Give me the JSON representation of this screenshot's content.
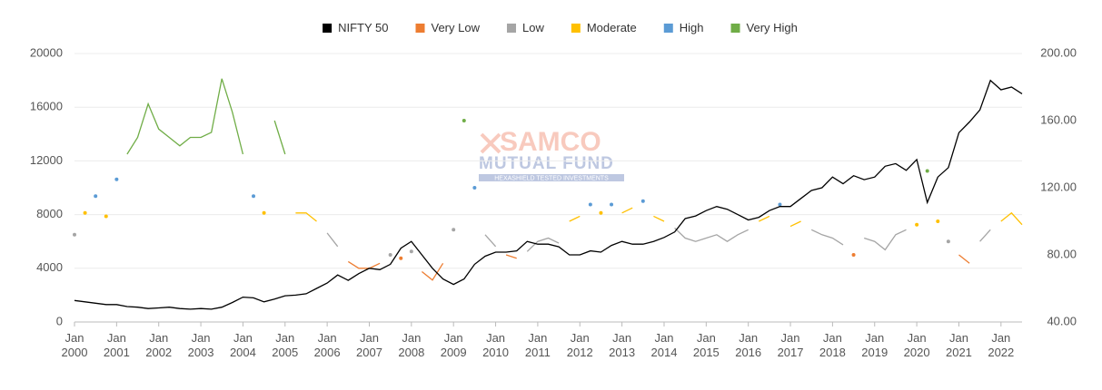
{
  "chart_data": {
    "type": "line",
    "x": [
      "2000-01",
      "2000-04",
      "2000-07",
      "2000-10",
      "2001-01",
      "2001-04",
      "2001-07",
      "2001-10",
      "2002-01",
      "2002-04",
      "2002-07",
      "2002-10",
      "2003-01",
      "2003-04",
      "2003-07",
      "2003-10",
      "2004-01",
      "2004-04",
      "2004-07",
      "2004-10",
      "2005-01",
      "2005-04",
      "2005-07",
      "2005-10",
      "2006-01",
      "2006-04",
      "2006-07",
      "2006-10",
      "2007-01",
      "2007-04",
      "2007-07",
      "2007-10",
      "2008-01",
      "2008-04",
      "2008-07",
      "2008-10",
      "2009-01",
      "2009-04",
      "2009-07",
      "2009-10",
      "2010-01",
      "2010-04",
      "2010-07",
      "2010-10",
      "2011-01",
      "2011-04",
      "2011-07",
      "2011-10",
      "2012-01",
      "2012-04",
      "2012-07",
      "2012-10",
      "2013-01",
      "2013-04",
      "2013-07",
      "2013-10",
      "2014-01",
      "2014-04",
      "2014-07",
      "2014-10",
      "2015-01",
      "2015-04",
      "2015-07",
      "2015-10",
      "2016-01",
      "2016-04",
      "2016-07",
      "2016-10",
      "2017-01",
      "2017-04",
      "2017-07",
      "2017-10",
      "2018-01",
      "2018-04",
      "2018-07",
      "2018-10",
      "2019-01",
      "2019-04",
      "2019-07",
      "2019-10",
      "2020-01",
      "2020-04",
      "2020-07",
      "2020-10",
      "2021-01",
      "2021-04",
      "2021-07",
      "2021-10",
      "2022-01",
      "2022-04",
      "2022-07"
    ],
    "xlim": [
      "2000-01",
      "2022-07"
    ],
    "xticks": [
      {
        "value": "2000-01",
        "label": "Jan 2000"
      },
      {
        "value": "2001-01",
        "label": "Jan 2001"
      },
      {
        "value": "2002-01",
        "label": "Jan 2002"
      },
      {
        "value": "2003-01",
        "label": "Jan 2003"
      },
      {
        "value": "2004-01",
        "label": "Jan 2004"
      },
      {
        "value": "2005-01",
        "label": "Jan 2005"
      },
      {
        "value": "2006-01",
        "label": "Jan 2006"
      },
      {
        "value": "2007-01",
        "label": "Jan 2007"
      },
      {
        "value": "2008-01",
        "label": "Jan 2008"
      },
      {
        "value": "2009-01",
        "label": "Jan 2009"
      },
      {
        "value": "2010-01",
        "label": "Jan 2010"
      },
      {
        "value": "2011-01",
        "label": "Jan 2011"
      },
      {
        "value": "2012-01",
        "label": "Jan 2012"
      },
      {
        "value": "2013-01",
        "label": "Jan 2013"
      },
      {
        "value": "2014-01",
        "label": "Jan 2014"
      },
      {
        "value": "2015-01",
        "label": "Jan 2015"
      },
      {
        "value": "2016-01",
        "label": "Jan 2016"
      },
      {
        "value": "2017-01",
        "label": "Jan 2017"
      },
      {
        "value": "2018-01",
        "label": "Jan 2018"
      },
      {
        "value": "2019-01",
        "label": "Jan 2019"
      },
      {
        "value": "2020-01",
        "label": "Jan 2020"
      },
      {
        "value": "2021-01",
        "label": "Jan 2021"
      },
      {
        "value": "2022-01",
        "label": "Jan 2022"
      }
    ],
    "ylim": [
      0,
      20000
    ],
    "yticks": [
      0,
      4000,
      8000,
      12000,
      16000,
      20000
    ],
    "y2lim": [
      40,
      200
    ],
    "y2ticks": [
      {
        "value": 40,
        "label": "40.00"
      },
      {
        "value": 80,
        "label": "80.00"
      },
      {
        "value": 120,
        "label": "120.00"
      },
      {
        "value": 160,
        "label": "160.00"
      },
      {
        "value": 200,
        "label": "200.00"
      }
    ],
    "grid": true,
    "series": [
      {
        "name": "NIFTY 50",
        "color": "#000000",
        "values": [
          1600,
          1500,
          1400,
          1300,
          1300,
          1150,
          1100,
          1000,
          1050,
          1100,
          1000,
          950,
          1000,
          950,
          1100,
          1450,
          1850,
          1800,
          1500,
          1700,
          1950,
          2000,
          2100,
          2500,
          2900,
          3500,
          3100,
          3600,
          4000,
          3900,
          4300,
          5500,
          6000,
          5000,
          4000,
          3200,
          2800,
          3200,
          4300,
          4900,
          5200,
          5200,
          5300,
          6000,
          5800,
          5800,
          5600,
          5000,
          5000,
          5300,
          5200,
          5700,
          6000,
          5800,
          5800,
          6000,
          6300,
          6700,
          7700,
          7900,
          8300,
          8600,
          8400,
          8000,
          7600,
          7800,
          8300,
          8600,
          8600,
          9200,
          9800,
          10000,
          10800,
          10300,
          10900,
          10600,
          10800,
          11600,
          11800,
          11300,
          12100,
          8900,
          10800,
          11500,
          14100,
          14900,
          15800,
          18000,
          17300,
          17500,
          17000
        ]
      },
      {
        "name": "Very Low",
        "color": "#ed7d31",
        "axis": "y2",
        "values": [
          null,
          null,
          null,
          null,
          null,
          null,
          null,
          null,
          null,
          null,
          null,
          null,
          null,
          null,
          null,
          null,
          null,
          null,
          null,
          null,
          null,
          null,
          null,
          null,
          null,
          null,
          76,
          72,
          72,
          75,
          null,
          78,
          null,
          70,
          65,
          75,
          null,
          null,
          null,
          null,
          null,
          80,
          78,
          null,
          null,
          null,
          null,
          null,
          null,
          null,
          null,
          null,
          null,
          null,
          null,
          null,
          null,
          null,
          null,
          null,
          null,
          null,
          null,
          null,
          null,
          null,
          null,
          null,
          null,
          null,
          null,
          null,
          null,
          null,
          80,
          null,
          null,
          null,
          null,
          null,
          null,
          null,
          null,
          null,
          80,
          75,
          null,
          null,
          null,
          null,
          null
        ]
      },
      {
        "name": "Low",
        "color": "#a5a5a5",
        "axis": "y2",
        "values": [
          92,
          null,
          null,
          null,
          null,
          null,
          null,
          null,
          null,
          null,
          null,
          null,
          null,
          null,
          null,
          null,
          null,
          null,
          null,
          null,
          null,
          null,
          null,
          null,
          93,
          85,
          null,
          null,
          null,
          null,
          80,
          null,
          82,
          null,
          null,
          null,
          95,
          null,
          null,
          92,
          85,
          null,
          null,
          82,
          88,
          90,
          87,
          null,
          null,
          null,
          null,
          null,
          null,
          null,
          null,
          null,
          null,
          96,
          90,
          88,
          90,
          92,
          88,
          92,
          95,
          null,
          null,
          null,
          null,
          null,
          95,
          92,
          90,
          86,
          null,
          90,
          88,
          83,
          92,
          95,
          null,
          null,
          null,
          88,
          null,
          null,
          88,
          95,
          null,
          null,
          null
        ]
      },
      {
        "name": "Moderate",
        "color": "#ffc000",
        "axis": "y2",
        "values": [
          null,
          105,
          null,
          103,
          null,
          null,
          null,
          null,
          null,
          null,
          null,
          null,
          null,
          null,
          null,
          null,
          null,
          null,
          105,
          null,
          null,
          105,
          105,
          100,
          null,
          null,
          null,
          null,
          null,
          null,
          null,
          null,
          null,
          null,
          null,
          null,
          null,
          null,
          null,
          null,
          null,
          null,
          null,
          null,
          null,
          null,
          null,
          100,
          103,
          null,
          105,
          null,
          105,
          108,
          null,
          103,
          100,
          null,
          null,
          null,
          null,
          null,
          null,
          null,
          null,
          100,
          103,
          null,
          97,
          100,
          null,
          null,
          null,
          null,
          null,
          null,
          null,
          null,
          null,
          null,
          98,
          null,
          100,
          null,
          null,
          null,
          null,
          null,
          100,
          105,
          98
        ]
      },
      {
        "name": "High",
        "color": "#5b9bd5",
        "axis": "y2",
        "values": [
          null,
          null,
          115,
          null,
          125,
          null,
          null,
          null,
          null,
          null,
          null,
          null,
          null,
          null,
          null,
          null,
          null,
          115,
          null,
          null,
          null,
          null,
          null,
          null,
          null,
          null,
          null,
          null,
          null,
          null,
          null,
          null,
          null,
          null,
          null,
          null,
          null,
          null,
          120,
          null,
          null,
          null,
          null,
          null,
          null,
          null,
          null,
          null,
          null,
          110,
          null,
          110,
          null,
          null,
          112,
          null,
          null,
          null,
          null,
          null,
          null,
          null,
          null,
          null,
          null,
          null,
          null,
          110,
          null,
          null,
          null,
          null,
          null,
          null,
          null,
          null,
          null,
          null,
          null,
          null,
          null,
          null,
          null,
          null,
          null,
          null,
          null,
          null,
          null,
          null,
          null
        ]
      },
      {
        "name": "Very High",
        "color": "#70ad47",
        "axis": "y2",
        "values": [
          null,
          null,
          null,
          null,
          null,
          140,
          150,
          170,
          155,
          150,
          145,
          150,
          150,
          153,
          185,
          165,
          140,
          null,
          null,
          160,
          140,
          null,
          null,
          null,
          null,
          null,
          null,
          null,
          null,
          null,
          null,
          null,
          null,
          null,
          null,
          null,
          null,
          160,
          null,
          null,
          null,
          null,
          null,
          null,
          null,
          null,
          null,
          null,
          null,
          null,
          null,
          null,
          null,
          null,
          null,
          null,
          null,
          null,
          null,
          null,
          null,
          null,
          null,
          null,
          null,
          null,
          null,
          null,
          null,
          null,
          null,
          null,
          null,
          null,
          null,
          null,
          null,
          null,
          null,
          null,
          null,
          130,
          null,
          null,
          null,
          null,
          null,
          null,
          null,
          null,
          null
        ]
      }
    ],
    "watermark": {
      "brand": "SAMCO",
      "line1": "MUTUAL FUND",
      "line2": "HEXASHIELD TESTED INVESTMENTS"
    }
  }
}
